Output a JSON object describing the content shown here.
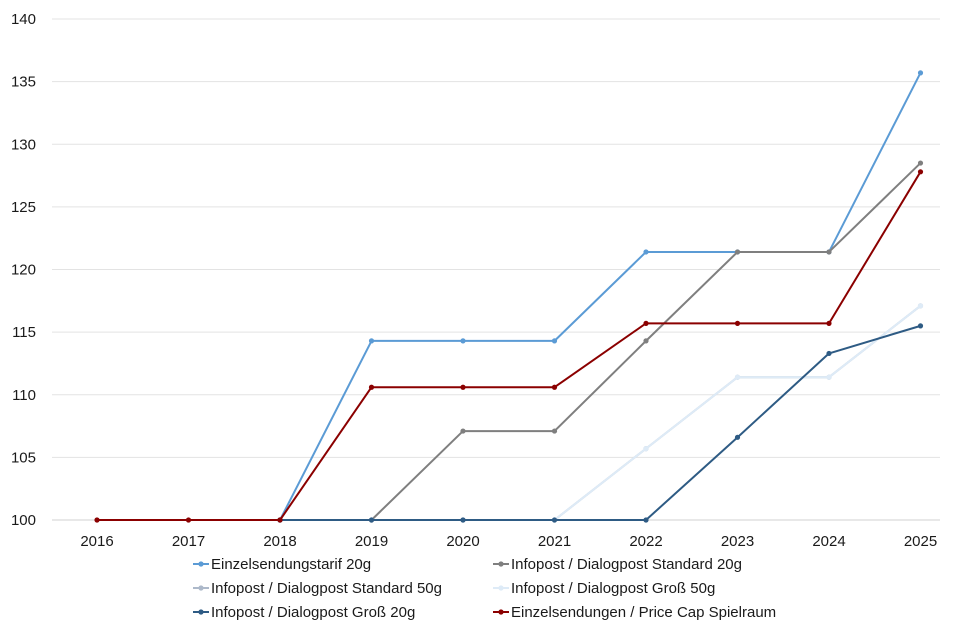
{
  "chart_data": {
    "type": "line",
    "title": "",
    "xlabel": "",
    "ylabel": "",
    "x": [
      "2016",
      "2017",
      "2018",
      "2019",
      "2020",
      "2021",
      "2022",
      "2023",
      "2024",
      "2025"
    ],
    "ylim": [
      100,
      140
    ],
    "yticks": [
      100,
      105,
      110,
      115,
      120,
      125,
      130,
      135,
      140
    ],
    "grid": "horizontal",
    "legend_position": "bottom",
    "series": [
      {
        "name": "Einzelsendungstarif 20g",
        "color": "#5b9bd5",
        "values": [
          null,
          null,
          100,
          114.3,
          114.3,
          114.3,
          121.4,
          121.4,
          121.4,
          135.7
        ]
      },
      {
        "name": "Infopost / Dialogpost Standard 20g",
        "color": "#7f7f7f",
        "values": [
          null,
          null,
          100,
          100,
          107.1,
          107.1,
          114.3,
          121.4,
          121.4,
          128.5
        ]
      },
      {
        "name": "Infopost / Dialogpost Standard 50g",
        "color": "#adb9ca",
        "values": [
          null,
          null,
          100,
          100,
          100,
          100,
          105.7,
          111.4,
          111.4,
          117.1
        ]
      },
      {
        "name": "Infopost / Dialogpost Groß 50g",
        "color": "#deebf7",
        "values": [
          null,
          null,
          100,
          100,
          100,
          100,
          105.7,
          111.4,
          111.4,
          117.1
        ]
      },
      {
        "name": "Infopost / Dialogpost Groß 20g",
        "color": "#2e5b84",
        "values": [
          null,
          null,
          100,
          100,
          100,
          100,
          100,
          106.6,
          113.3,
          115.5
        ]
      },
      {
        "name": "Einzelsendungen / Price Cap Spielraum",
        "color": "#8b0000",
        "values": [
          100,
          100,
          100,
          110.6,
          110.6,
          110.6,
          115.7,
          115.7,
          115.7,
          127.8
        ]
      }
    ]
  }
}
